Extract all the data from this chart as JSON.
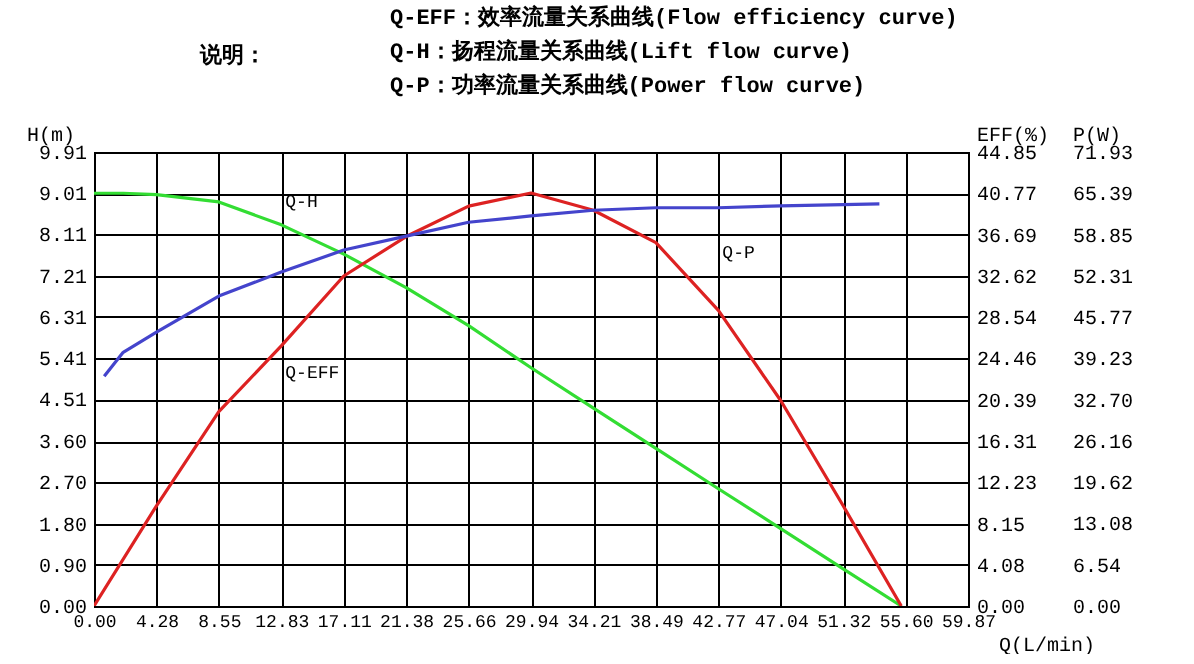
{
  "chart_data": {
    "type": "line",
    "title": "说明：",
    "annotations": [
      "Q-EFF：效率流量关系曲线(Flow efficiency curve)",
      "Q-H：扬程流量关系曲线(Lift flow curve)",
      "Q-P：功率流量关系曲线(Power flow curve)"
    ],
    "xlabel": "Q(L/min)",
    "ylabel": "H(m)",
    "y2label": "EFF(%)",
    "y3label": "P(W)",
    "xlim": [
      0,
      59.87
    ],
    "xticks": [
      {
        "value": 0,
        "label": "0.00"
      },
      4.28,
      8.55,
      12.83,
      17.11,
      21.38,
      25.66,
      29.94,
      34.21,
      38.49,
      42.77,
      47.04,
      51.32,
      {
        "value": 55.6,
        "label": "55.60"
      },
      59.87
    ],
    "ylim": [
      0,
      9.91
    ],
    "yticks": [
      {
        "value": 0,
        "label": "0.00"
      },
      {
        "value": 0.9,
        "label": "0.90"
      },
      {
        "value": 1.8,
        "label": "1.80"
      },
      {
        "value": 2.7,
        "label": "2.70"
      },
      {
        "value": 3.6,
        "label": "3.60"
      },
      4.51,
      5.41,
      6.31,
      7.21,
      8.11,
      9.01,
      9.91
    ],
    "y2lim": [
      0,
      44.85
    ],
    "y2ticks": [
      {
        "value": 0,
        "label": "0.00"
      },
      4.08,
      8.15,
      12.23,
      16.31,
      20.39,
      24.46,
      28.54,
      32.62,
      36.69,
      40.77,
      44.85
    ],
    "y3lim": [
      0,
      71.93
    ],
    "y3ticks": [
      {
        "value": 0,
        "label": "0.00"
      },
      6.54,
      13.08,
      19.62,
      26.16,
      {
        "value": 32.7,
        "label": "32.70"
      },
      39.23,
      45.77,
      52.31,
      58.85,
      65.39,
      71.93
    ],
    "grid": true,
    "line_style": "solid",
    "series": [
      {
        "name": "Q-H",
        "color": "#33dd33",
        "x": [
          0,
          2,
          4.28,
          8.55,
          12.83,
          17.11,
          21.38,
          25.66,
          29.94,
          34.21,
          38.49,
          42.77,
          47.04,
          51.32,
          55.3
        ],
        "values": [
          9.01,
          9.01,
          8.98,
          8.82,
          8.32,
          7.68,
          6.95,
          6.12,
          5.2,
          4.32,
          3.44,
          2.56,
          1.69,
          0.81,
          0
        ]
      },
      {
        "name": "Q-EFF",
        "color": "#dd2222",
        "axis": "y2",
        "x": [
          0,
          4.28,
          8.55,
          12.83,
          17.11,
          21.38,
          25.66,
          29.94,
          34.21,
          38.49,
          42.77,
          47.04,
          51.32,
          55.3
        ],
        "values": [
          0,
          9.9,
          19.2,
          25.7,
          32.6,
          36.5,
          39.5,
          40.8,
          39.1,
          35.9,
          29.2,
          20.3,
          9.9,
          0
        ]
      },
      {
        "name": "Q-P",
        "color": "#4444cc",
        "axis": "y3",
        "x": [
          0.7,
          2,
          4.28,
          8.55,
          12.83,
          17.11,
          21.38,
          25.66,
          29.94,
          34.21,
          38.49,
          42.77,
          47.04,
          51.32,
          53.8
        ],
        "values": [
          36.4,
          40.2,
          43.4,
          49.1,
          52.9,
          56.4,
          58.6,
          60.8,
          61.8,
          62.7,
          63.1,
          63.1,
          63.4,
          63.6,
          63.7
        ]
      }
    ]
  }
}
